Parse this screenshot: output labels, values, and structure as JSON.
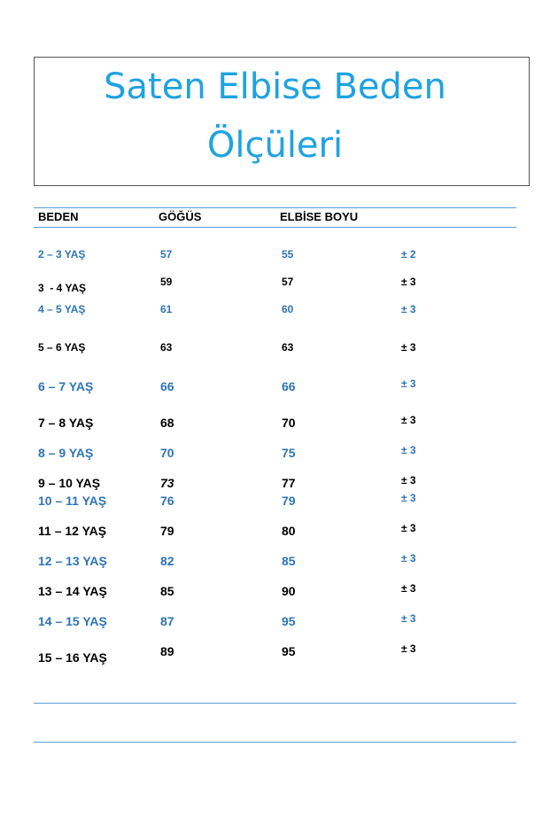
{
  "header": {
    "title_line1": "Saten Elbise Beden",
    "title_line2": "Ölçüleri"
  },
  "table": {
    "columns": [
      "BEDEN",
      "GÖĞÜS",
      "ELBİSE BOYU"
    ],
    "rows": [
      [
        "2 – 3 YAŞ",
        57,
        55,
        "± 2"
      ],
      [
        "3  - 4 YAŞ",
        59,
        57,
        "± 3"
      ],
      [
        "4 – 5 YAŞ",
        61,
        60,
        "± 3"
      ],
      [
        "5 – 6 YAŞ",
        63,
        63,
        "± 3"
      ],
      [
        "6 – 7 YAŞ",
        66,
        66,
        "± 3"
      ],
      [
        "7 – 8 YAŞ",
        68,
        70,
        "± 3"
      ],
      [
        "8 – 9 YAŞ",
        70,
        75,
        "± 3"
      ],
      [
        "9 – 10 YAŞ",
        73,
        77,
        "± 3"
      ],
      [
        "10 – 11 YAŞ",
        76,
        79,
        "± 3"
      ],
      [
        "11 – 12 YAŞ",
        79,
        80,
        "± 3"
      ],
      [
        "12 – 13 YAŞ",
        82,
        85,
        "± 3"
      ],
      [
        "13 – 14 YAŞ",
        85,
        90,
        "± 3"
      ],
      [
        "14 – 15 YAŞ",
        87,
        95,
        "± 3"
      ],
      [
        "15 – 16 YAŞ",
        89,
        95,
        "± 3"
      ]
    ]
  }
}
